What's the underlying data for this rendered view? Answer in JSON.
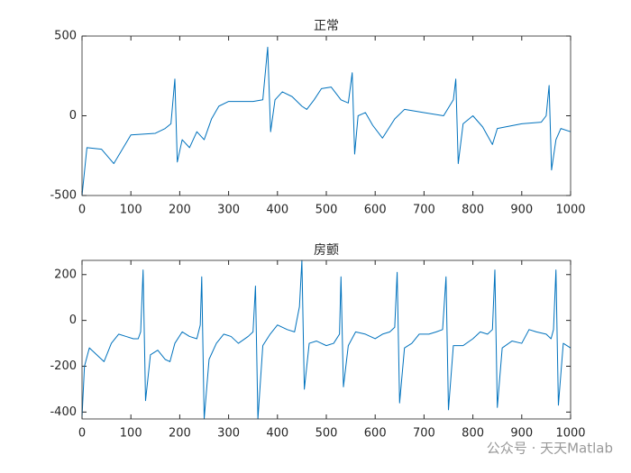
{
  "chart_data": [
    {
      "type": "line",
      "title": "正常",
      "x": [
        0,
        10,
        40,
        65,
        100,
        150,
        170,
        182,
        190,
        195,
        205,
        220,
        235,
        250,
        265,
        280,
        300,
        350,
        370,
        380,
        386,
        395,
        410,
        430,
        450,
        460,
        475,
        490,
        510,
        530,
        545,
        553,
        558,
        565,
        580,
        595,
        615,
        640,
        660,
        700,
        740,
        760,
        765,
        770,
        780,
        800,
        820,
        840,
        850,
        900,
        940,
        950,
        956,
        961,
        970,
        980,
        1000
      ],
      "values": [
        -500,
        -200,
        -210,
        -300,
        -120,
        -110,
        -80,
        -50,
        230,
        -290,
        -150,
        -200,
        -100,
        -150,
        -20,
        60,
        90,
        90,
        100,
        430,
        -100,
        100,
        150,
        120,
        60,
        40,
        100,
        170,
        180,
        100,
        80,
        270,
        -240,
        0,
        20,
        -60,
        -140,
        -20,
        40,
        20,
        0,
        100,
        230,
        -300,
        -50,
        0,
        -70,
        -180,
        -80,
        -50,
        -40,
        0,
        190,
        -340,
        -150,
        -80,
        -100
      ],
      "color": "#0072bd",
      "xlim": [
        0,
        1000
      ],
      "xticks": [
        0,
        100,
        200,
        300,
        400,
        500,
        600,
        700,
        800,
        900,
        1000
      ],
      "ylim": [
        -500,
        500
      ],
      "yticks": [
        -500,
        0,
        500
      ]
    },
    {
      "type": "line",
      "title": "房颤",
      "x": [
        0,
        5,
        15,
        30,
        45,
        60,
        75,
        90,
        105,
        115,
        120,
        125,
        130,
        140,
        155,
        170,
        180,
        190,
        205,
        220,
        235,
        242,
        245,
        250,
        260,
        275,
        290,
        305,
        320,
        340,
        350,
        355,
        360,
        370,
        385,
        400,
        420,
        435,
        445,
        450,
        455,
        465,
        480,
        500,
        515,
        527,
        530,
        535,
        545,
        560,
        580,
        600,
        615,
        630,
        640,
        645,
        650,
        660,
        675,
        690,
        710,
        725,
        738,
        745,
        750,
        760,
        780,
        800,
        815,
        830,
        840,
        845,
        850,
        860,
        880,
        900,
        915,
        930,
        950,
        960,
        965,
        970,
        975,
        985,
        1000
      ],
      "values": [
        -420,
        -200,
        -120,
        -150,
        -180,
        -100,
        -60,
        -70,
        -80,
        -80,
        -50,
        220,
        -350,
        -150,
        -130,
        -170,
        -180,
        -100,
        -50,
        -70,
        -80,
        -20,
        190,
        -430,
        -170,
        -100,
        -60,
        -70,
        -100,
        -70,
        -50,
        150,
        -430,
        -110,
        -60,
        -20,
        -40,
        -50,
        60,
        262,
        -300,
        -100,
        -90,
        -110,
        -100,
        -60,
        190,
        -290,
        -110,
        -50,
        -60,
        -80,
        -60,
        -50,
        -30,
        210,
        -360,
        -120,
        -100,
        -60,
        -60,
        -50,
        -40,
        190,
        -390,
        -110,
        -110,
        -80,
        -50,
        -60,
        -40,
        220,
        -380,
        -120,
        -90,
        -100,
        -40,
        -50,
        -60,
        -80,
        -40,
        220,
        -370,
        -100,
        -120
      ],
      "color": "#0072bd",
      "xlim": [
        0,
        1000
      ],
      "xticks": [
        0,
        100,
        200,
        300,
        400,
        500,
        600,
        700,
        800,
        900,
        1000
      ],
      "ylim": [
        -430,
        262
      ],
      "yticks": [
        -400,
        -200,
        0,
        200
      ]
    }
  ],
  "watermark": "公众号 · 天天Matlab"
}
